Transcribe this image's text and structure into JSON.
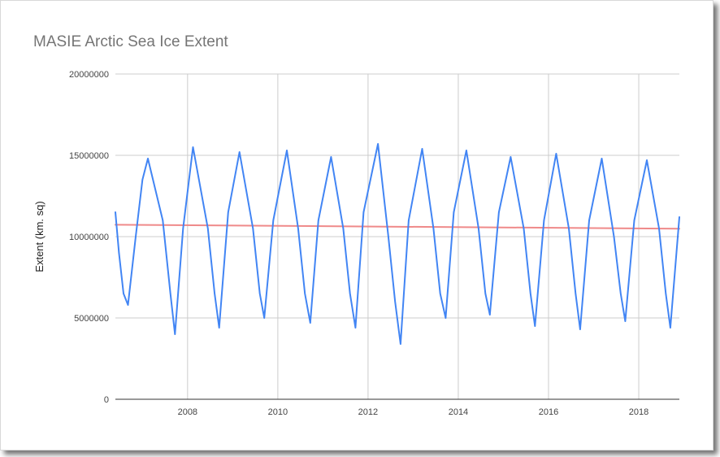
{
  "chart_data": {
    "type": "line",
    "title": "MASIE Arctic Sea Ice Extent",
    "xlabel": "",
    "ylabel": "Extent (km. sq)",
    "xlim": [
      2006.4,
      2018.9
    ],
    "ylim": [
      0,
      20000000
    ],
    "yticks": [
      "0",
      "5000000",
      "10000000",
      "15000000",
      "20000000"
    ],
    "xticks": [
      "2008",
      "2010",
      "2012",
      "2014",
      "2016",
      "2018"
    ],
    "grid": true,
    "legend": "none",
    "series": [
      {
        "color": "#4285f4",
        "x": [
          2006.4,
          2006.48,
          2006.58,
          2006.68,
          2006.85,
          2007.0,
          2007.12,
          2007.45,
          2007.62,
          2007.72,
          2007.9,
          2008.12,
          2008.45,
          2008.6,
          2008.7,
          2008.9,
          2009.15,
          2009.45,
          2009.6,
          2009.7,
          2009.9,
          2010.2,
          2010.45,
          2010.6,
          2010.72,
          2010.9,
          2011.18,
          2011.45,
          2011.6,
          2011.72,
          2011.9,
          2012.22,
          2012.45,
          2012.6,
          2012.72,
          2012.9,
          2013.2,
          2013.45,
          2013.6,
          2013.72,
          2013.9,
          2014.18,
          2014.45,
          2014.6,
          2014.7,
          2014.9,
          2015.16,
          2015.45,
          2015.6,
          2015.7,
          2015.9,
          2016.17,
          2016.45,
          2016.6,
          2016.7,
          2016.9,
          2017.18,
          2017.45,
          2017.6,
          2017.7,
          2017.9,
          2018.18,
          2018.45,
          2018.6,
          2018.7,
          2018.9
        ],
        "values": [
          11500000,
          9000000,
          6500000,
          5800000,
          10000000,
          13500000,
          14800000,
          11000000,
          6500000,
          4000000,
          10500000,
          15500000,
          10500000,
          6500000,
          4400000,
          11500000,
          15200000,
          10500000,
          6500000,
          5000000,
          11000000,
          15300000,
          10500000,
          6500000,
          4700000,
          11000000,
          14900000,
          10500000,
          6500000,
          4400000,
          11500000,
          15700000,
          10000000,
          6000000,
          3400000,
          11000000,
          15400000,
          10500000,
          6500000,
          5000000,
          11500000,
          15300000,
          10500000,
          6500000,
          5200000,
          11500000,
          14900000,
          10500000,
          6500000,
          4500000,
          11000000,
          15100000,
          10500000,
          6500000,
          4300000,
          11000000,
          14800000,
          10000000,
          6500000,
          4800000,
          11000000,
          14700000,
          10500000,
          6500000,
          4400000,
          11200000
        ]
      },
      {
        "color": "#ef8a8a",
        "x": [
          2006.4,
          2018.9
        ],
        "values": [
          10730000,
          10490000
        ]
      }
    ]
  }
}
